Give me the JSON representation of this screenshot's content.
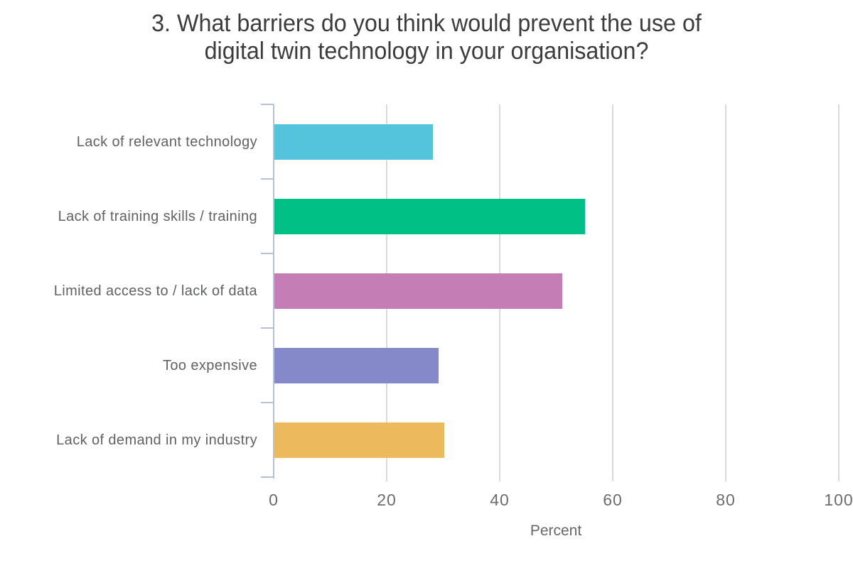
{
  "chart_data": {
    "type": "bar",
    "orientation": "horizontal",
    "title": "3. What barriers do you think would prevent the use of digital twin technology in your organisation?",
    "title_lines": [
      "3. What barriers do you think would prevent the use of",
      "digital twin technology in your organisation?"
    ],
    "categories": [
      "Lack of relevant technology",
      "Lack of training skills / training",
      "Limited access to / lack of data",
      "Too expensive",
      "Lack of demand in my industry"
    ],
    "values": [
      28,
      55,
      51,
      29,
      30
    ],
    "bar_colors": [
      "#54c3dc",
      "#00c086",
      "#c57eb5",
      "#8589c9",
      "#ecb95c"
    ],
    "xlabel": "Percent",
    "xlim": [
      0,
      100
    ],
    "xticks": [
      0,
      20,
      40,
      60,
      80,
      100
    ],
    "grid": true,
    "legend": "none",
    "colors": {
      "axis_line": "#b7c1d4",
      "gridline": "#dadada",
      "title_text": "#3c3c3e",
      "category_text": "#5f6163",
      "tick_text": "#6c6c6c",
      "background": "#ffffff"
    }
  }
}
